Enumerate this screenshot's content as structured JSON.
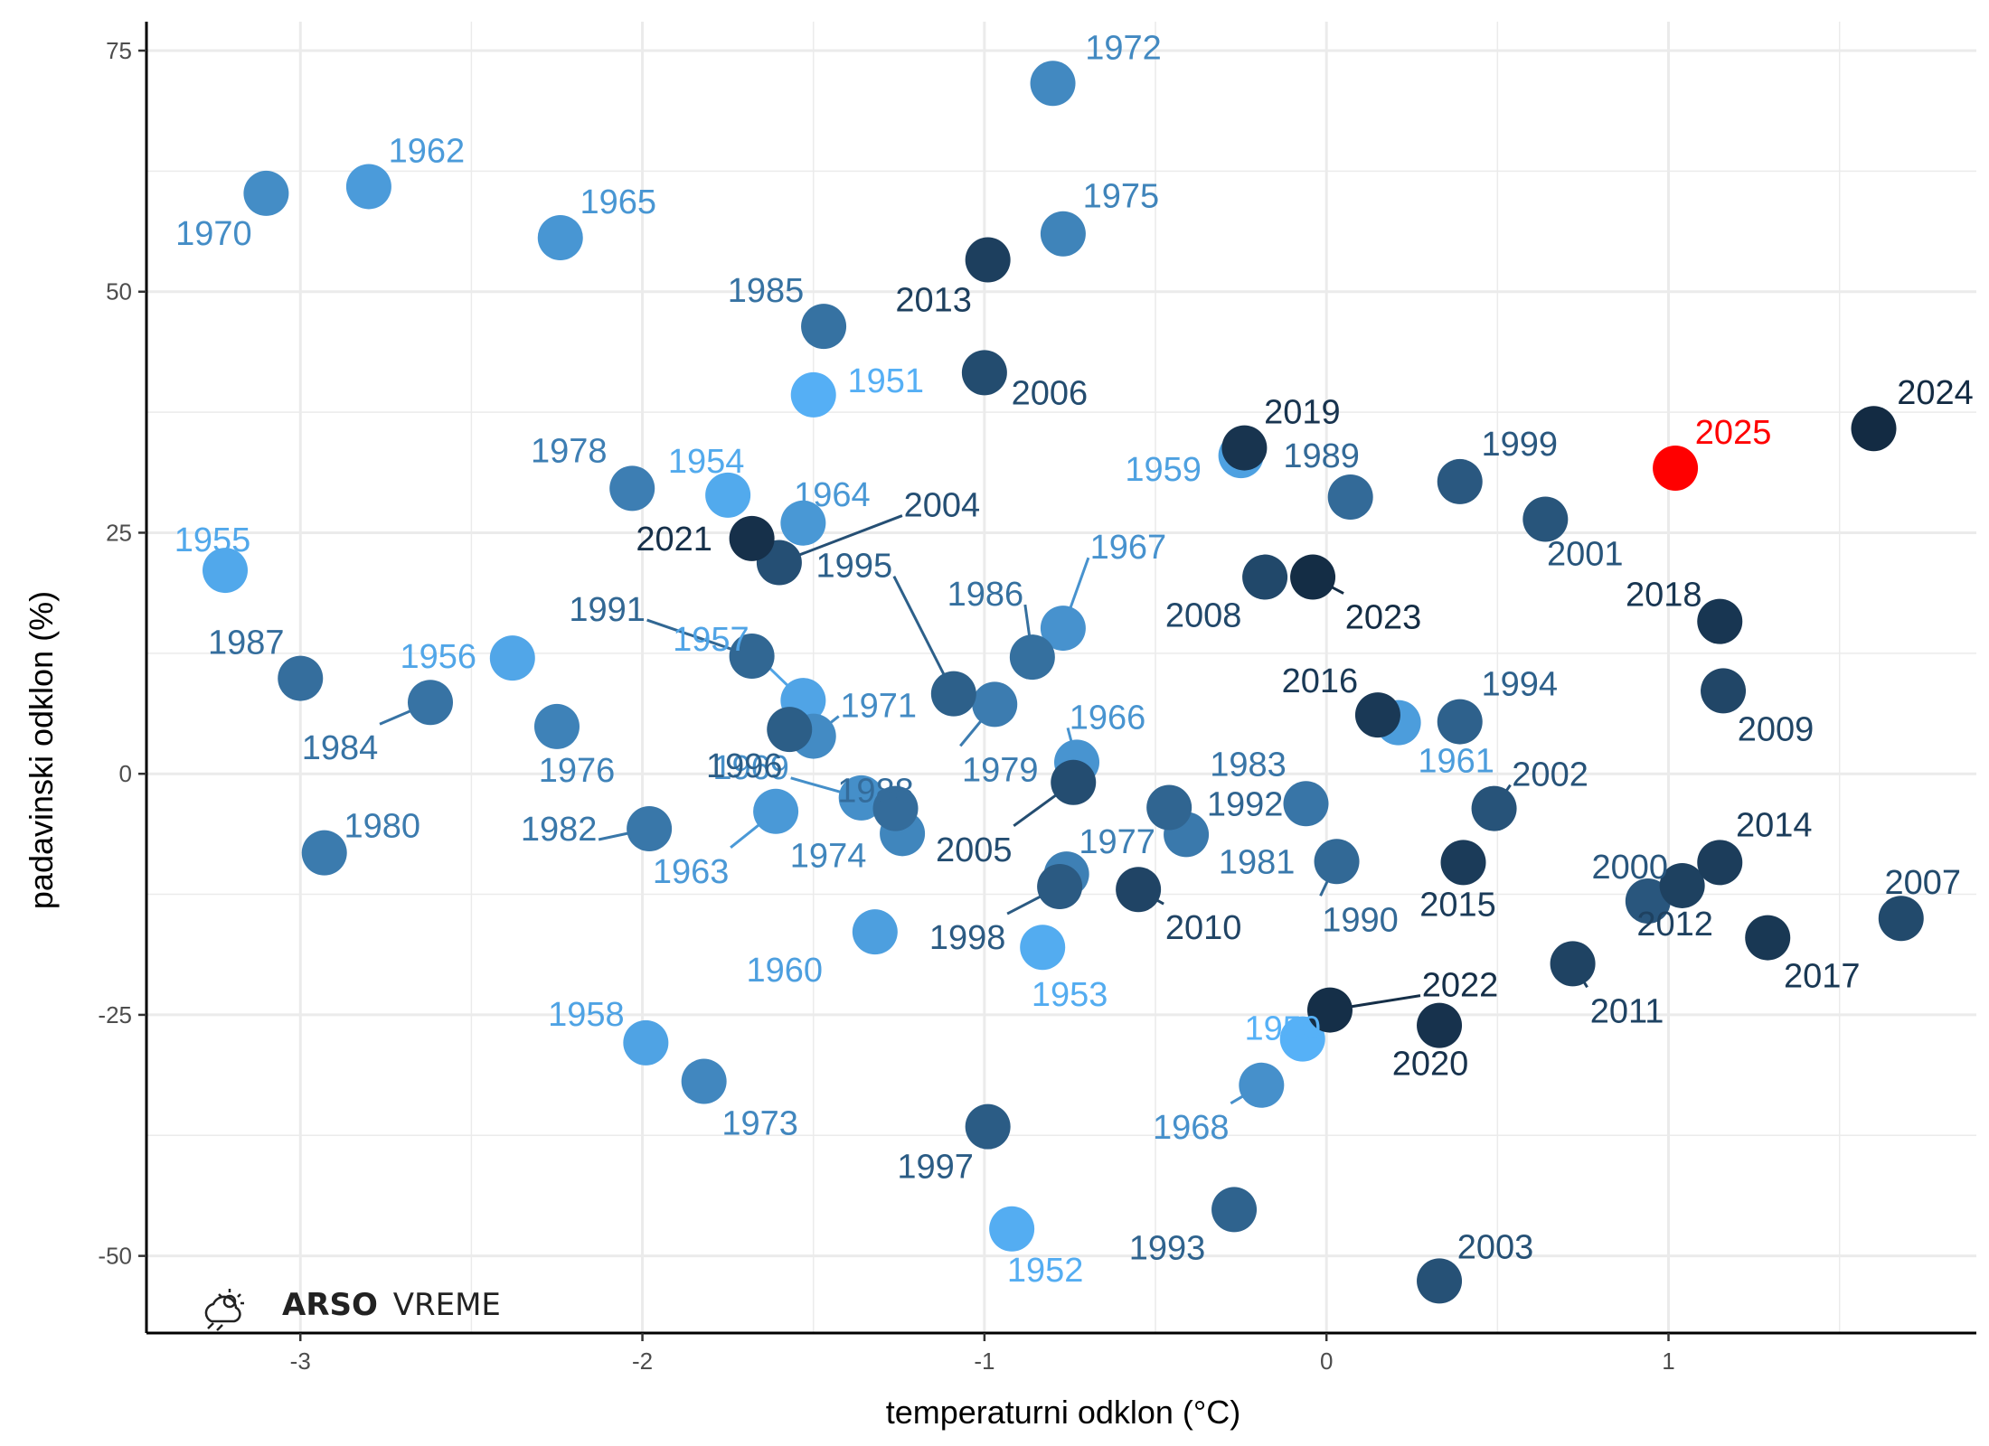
{
  "chart_data": {
    "type": "scatter",
    "xlabel": "temperaturni odklon (°C)",
    "ylabel": "padavinski odklon (%)",
    "xlim": [
      -3.45,
      1.9
    ],
    "ylim": [
      -58,
      78
    ],
    "x_ticks": [
      -3,
      -2,
      -1,
      0,
      1
    ],
    "y_ticks": [
      -50,
      -25,
      0,
      25,
      50,
      75
    ],
    "grid": true,
    "highlight_color": "#ff0000",
    "color_oldest": "#56b1f7",
    "color_newest": "#132b43",
    "points": [
      {
        "year": "1950",
        "x": -0.07,
        "y": -27.5
      },
      {
        "year": "1951",
        "x": -1.5,
        "y": 39.3
      },
      {
        "year": "1952",
        "x": -0.92,
        "y": -47.2
      },
      {
        "year": "1953",
        "x": -0.83,
        "y": -18.0
      },
      {
        "year": "1954",
        "x": -1.75,
        "y": 28.9
      },
      {
        "year": "1955",
        "x": -3.22,
        "y": 21.1
      },
      {
        "year": "1956",
        "x": -2.38,
        "y": 12.0
      },
      {
        "year": "1957",
        "x": -1.53,
        "y": 7.6
      },
      {
        "year": "1958",
        "x": -1.99,
        "y": -27.9
      },
      {
        "year": "1959",
        "x": -0.25,
        "y": 33.0
      },
      {
        "year": "1960",
        "x": -1.32,
        "y": -16.4
      },
      {
        "year": "1961",
        "x": 0.21,
        "y": 5.3
      },
      {
        "year": "1962",
        "x": -2.8,
        "y": 60.9
      },
      {
        "year": "1963",
        "x": -1.61,
        "y": -3.9
      },
      {
        "year": "1964",
        "x": -1.53,
        "y": 26.0
      },
      {
        "year": "1965",
        "x": -2.24,
        "y": 55.6
      },
      {
        "year": "1966",
        "x": -0.73,
        "y": 1.2
      },
      {
        "year": "1967",
        "x": -0.77,
        "y": 15.1
      },
      {
        "year": "1968",
        "x": -0.19,
        "y": -32.3
      },
      {
        "year": "1969",
        "x": -1.36,
        "y": -2.5
      },
      {
        "year": "1970",
        "x": -3.1,
        "y": 60.2
      },
      {
        "year": "1971",
        "x": -1.5,
        "y": 3.9
      },
      {
        "year": "1972",
        "x": -0.8,
        "y": 71.6
      },
      {
        "year": "1973",
        "x": -1.82,
        "y": -31.9
      },
      {
        "year": "1974",
        "x": -1.24,
        "y": -6.2
      },
      {
        "year": "1975",
        "x": -0.77,
        "y": 56.0
      },
      {
        "year": "1976",
        "x": -2.25,
        "y": 4.9
      },
      {
        "year": "1977",
        "x": -0.76,
        "y": -10.4
      },
      {
        "year": "1978",
        "x": -2.03,
        "y": 29.6
      },
      {
        "year": "1979",
        "x": -0.97,
        "y": 7.2
      },
      {
        "year": "1980",
        "x": -2.93,
        "y": -8.2
      },
      {
        "year": "1981",
        "x": -0.41,
        "y": -6.3
      },
      {
        "year": "1982",
        "x": -1.98,
        "y": -5.7
      },
      {
        "year": "1983",
        "x": -0.06,
        "y": -3.1
      },
      {
        "year": "1984",
        "x": -2.62,
        "y": 7.4
      },
      {
        "year": "1985",
        "x": -1.47,
        "y": 46.4
      },
      {
        "year": "1986",
        "x": -0.86,
        "y": 12.1
      },
      {
        "year": "1987",
        "x": -3.0,
        "y": 9.9
      },
      {
        "year": "1988",
        "x": -1.26,
        "y": -3.6
      },
      {
        "year": "1989",
        "x": 0.07,
        "y": 28.7
      },
      {
        "year": "1990",
        "x": 0.03,
        "y": -9.1
      },
      {
        "year": "1991",
        "x": -1.68,
        "y": 12.2
      },
      {
        "year": "1992",
        "x": -0.46,
        "y": -3.5
      },
      {
        "year": "1993",
        "x": -0.27,
        "y": -45.2
      },
      {
        "year": "1994",
        "x": 0.39,
        "y": 5.4
      },
      {
        "year": "1995",
        "x": -1.09,
        "y": 8.3
      },
      {
        "year": "1996",
        "x": -1.57,
        "y": 4.6
      },
      {
        "year": "1997",
        "x": -0.99,
        "y": -36.6
      },
      {
        "year": "1998",
        "x": -0.78,
        "y": -11.7
      },
      {
        "year": "1999",
        "x": 0.39,
        "y": 30.3
      },
      {
        "year": "2000",
        "x": 0.94,
        "y": -13.2
      },
      {
        "year": "2001",
        "x": 0.64,
        "y": 26.4
      },
      {
        "year": "2002",
        "x": 0.49,
        "y": -3.6
      },
      {
        "year": "2003",
        "x": 0.33,
        "y": -52.6
      },
      {
        "year": "2004",
        "x": -1.6,
        "y": 21.9
      },
      {
        "year": "2005",
        "x": -0.74,
        "y": -0.9
      },
      {
        "year": "2006",
        "x": -1.0,
        "y": 41.6
      },
      {
        "year": "2007",
        "x": 1.68,
        "y": -15.0
      },
      {
        "year": "2008",
        "x": -0.18,
        "y": 20.4
      },
      {
        "year": "2009",
        "x": 1.16,
        "y": 8.6
      },
      {
        "year": "2010",
        "x": -0.55,
        "y": -12.0
      },
      {
        "year": "2011",
        "x": 0.72,
        "y": -19.7
      },
      {
        "year": "2012",
        "x": 1.04,
        "y": -11.6
      },
      {
        "year": "2013",
        "x": -0.99,
        "y": 53.3
      },
      {
        "year": "2014",
        "x": 1.15,
        "y": -9.2
      },
      {
        "year": "2015",
        "x": 0.4,
        "y": -9.2
      },
      {
        "year": "2016",
        "x": 0.15,
        "y": 6.1
      },
      {
        "year": "2017",
        "x": 1.29,
        "y": -17.0
      },
      {
        "year": "2018",
        "x": 1.15,
        "y": 15.8
      },
      {
        "year": "2019",
        "x": -0.24,
        "y": 33.8
      },
      {
        "year": "2020",
        "x": 0.33,
        "y": -26.1
      },
      {
        "year": "2021",
        "x": -1.68,
        "y": 24.4
      },
      {
        "year": "2022",
        "x": 0.01,
        "y": -24.5
      },
      {
        "year": "2023",
        "x": -0.04,
        "y": 20.4
      },
      {
        "year": "2024",
        "x": 1.6,
        "y": 35.8
      },
      {
        "year": "2025",
        "x": 1.02,
        "y": 31.7
      }
    ]
  },
  "watermark": {
    "icon": "sun-cloud-icon",
    "brand_bold": "ARSO",
    "brand_light": "VREME"
  }
}
